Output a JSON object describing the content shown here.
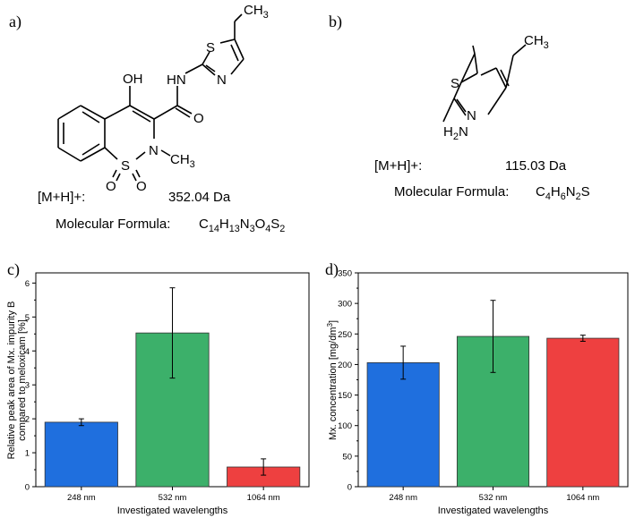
{
  "panels": {
    "a": {
      "label": "a)",
      "atoms": {
        "ch3_top": "CH3",
        "s_ring": "S",
        "n_ring": "N",
        "hn": "HN",
        "oh": "OH",
        "o_carbonyl": "O",
        "n_core": "N",
        "ch3_n": "CH3",
        "s_core": "S",
        "o1": "O",
        "o2": "O"
      },
      "mh_label": "[M+H]+:",
      "mh_value": "352.04 Da",
      "formula_label": "Molecular Formula:",
      "formula": "C14H13N3O4S2"
    },
    "b": {
      "label": "b)",
      "atoms": {
        "ch3": "CH3",
        "s": "S",
        "n": "N",
        "h2n": "H2N"
      },
      "mh_label": "[M+H]+:",
      "mh_value": "115.03 Da",
      "formula_label": "Molecular Formula:",
      "formula": "C4H6N2S"
    }
  },
  "colors": {
    "blue": "#1f6fde",
    "green": "#3cb06a",
    "red": "#ee4040"
  },
  "chart_data": [
    {
      "panel_label": "c)",
      "type": "bar",
      "categories": [
        "248 nm",
        "532 nm",
        "1064 nm"
      ],
      "values": [
        1.9,
        4.53,
        0.58
      ],
      "errors": [
        0.1,
        1.33,
        0.24
      ],
      "colors": [
        "#1f6fde",
        "#3cb06a",
        "#ee4040"
      ],
      "xlabel": "Investigated wavelengths",
      "ylabel_lines": [
        "Relative peak area of Mx. impurity B",
        "compared to meloxicam [%]"
      ],
      "ylim": [
        0,
        6.3
      ],
      "yticks": [
        "0",
        "1",
        "2",
        "3",
        "4",
        "5",
        "6"
      ],
      "grid": false
    },
    {
      "panel_label": "d)",
      "type": "bar",
      "categories": [
        "248 nm",
        "532 nm",
        "1064 nm"
      ],
      "values": [
        203,
        246,
        243
      ],
      "errors": [
        27,
        59,
        5
      ],
      "colors": [
        "#1f6fde",
        "#3cb06a",
        "#ee4040"
      ],
      "xlabel": "Investigated wavelengths",
      "ylabel": "Mx. concentration [mg/dm3]",
      "ylim": [
        0,
        350
      ],
      "yticks": [
        "0",
        "50",
        "100",
        "150",
        "200",
        "250",
        "300",
        "350"
      ],
      "grid": false
    }
  ]
}
